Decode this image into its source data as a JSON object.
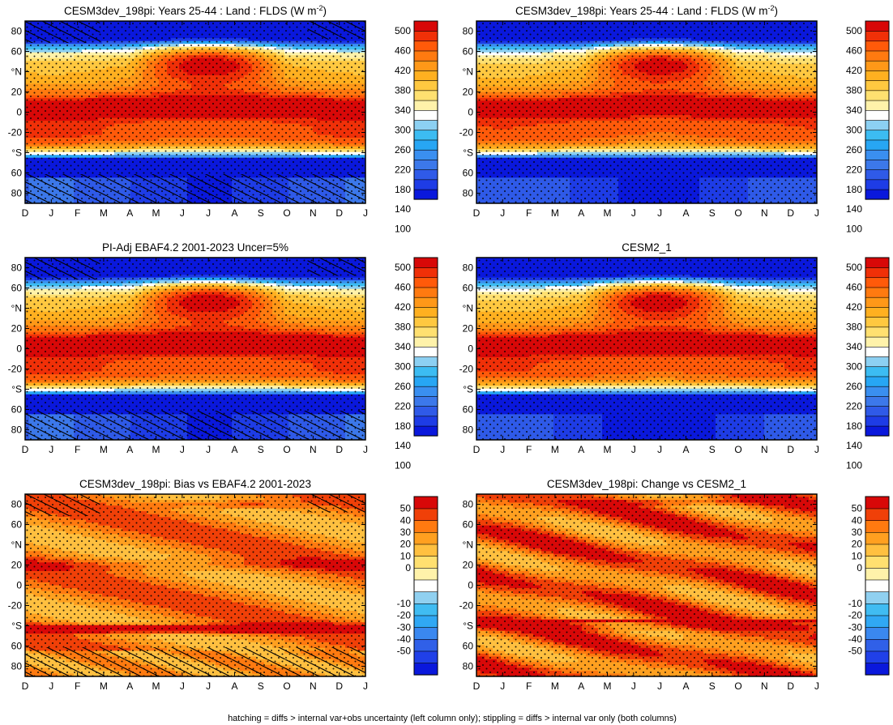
{
  "colors": {
    "absolute": [
      "#0a18dc",
      "#1e3ce6",
      "#2f5ae8",
      "#3c78ea",
      "#3a8ff0",
      "#27a6f4",
      "#3cbcf2",
      "#8cd0f2",
      "#ffffff",
      "#fff2aa",
      "#ffe070",
      "#ffc840",
      "#ffb020",
      "#ff9818",
      "#ff7a10",
      "#ff5a0a",
      "#f03008",
      "#d80808"
    ],
    "difference": [
      "#0a18dc",
      "#2040e8",
      "#3060e8",
      "#3a88f0",
      "#30a8f4",
      "#40bcf2",
      "#90d0f0",
      "#ffffff",
      "#fff2aa",
      "#ffe070",
      "#ffc040",
      "#ffa020",
      "#ff7a10",
      "#f04008",
      "#d80808"
    ]
  },
  "footnote": "hatching = diffs > internal var+obs uncertainty (left column only); stippling = diffs > internal var only (both columns)",
  "chart_data": [
    {
      "type": "heatmap",
      "id": "p1",
      "title": "CESM3dev_198pi: Years 25-44 : Land : FLDS (W m",
      "title_sup": "-2",
      "title_end": ")",
      "xlabel": "",
      "ylabel": "",
      "x_ticks": [
        "D",
        "J",
        "F",
        "M",
        "A",
        "M",
        "J",
        "J",
        "A",
        "S",
        "O",
        "N",
        "D",
        "J"
      ],
      "y_ticks": [
        "80",
        "60",
        "°N",
        "20",
        "0",
        "-20",
        "°S",
        "60",
        "80"
      ],
      "ylim": [
        -90,
        90
      ],
      "kind": "abs",
      "hatch": true,
      "colorbar": {
        "labels": [
          "500",
          "460",
          "420",
          "380",
          "340",
          "300",
          "260",
          "220",
          "180",
          "140",
          "100"
        ]
      }
    },
    {
      "type": "heatmap",
      "id": "p2",
      "title": "CESM3dev_198pi: Years 25-44 : Land : FLDS (W m",
      "title_sup": "-2",
      "title_end": ")",
      "xlabel": "",
      "ylabel": "",
      "x_ticks": [
        "D",
        "J",
        "F",
        "M",
        "A",
        "M",
        "J",
        "J",
        "A",
        "S",
        "O",
        "N",
        "D",
        "J"
      ],
      "y_ticks": [
        "80",
        "60",
        "°N",
        "20",
        "0",
        "-20",
        "°S",
        "60",
        "80"
      ],
      "ylim": [
        -90,
        90
      ],
      "kind": "abs",
      "hatch": false,
      "colorbar": {
        "labels": [
          "500",
          "460",
          "420",
          "380",
          "340",
          "300",
          "260",
          "220",
          "180",
          "140",
          "100"
        ]
      }
    },
    {
      "type": "heatmap",
      "id": "p3",
      "title": "PI-Adj EBAF4.2 2001-2023 Uncer=5%",
      "title_sup": "",
      "title_end": "",
      "xlabel": "",
      "ylabel": "",
      "x_ticks": [
        "D",
        "J",
        "F",
        "M",
        "A",
        "M",
        "J",
        "J",
        "A",
        "S",
        "O",
        "N",
        "D",
        "J"
      ],
      "y_ticks": [
        "80",
        "60",
        "°N",
        "20",
        "0",
        "-20",
        "°S",
        "60",
        "80"
      ],
      "ylim": [
        -90,
        90
      ],
      "kind": "abs",
      "hatch": true,
      "colorbar": {
        "labels": [
          "500",
          "460",
          "420",
          "380",
          "340",
          "300",
          "260",
          "220",
          "180",
          "140",
          "100"
        ]
      }
    },
    {
      "type": "heatmap",
      "id": "p4",
      "title": "CESM2_1",
      "title_sup": "",
      "title_end": "",
      "xlabel": "",
      "ylabel": "",
      "x_ticks": [
        "D",
        "J",
        "F",
        "M",
        "A",
        "M",
        "J",
        "J",
        "A",
        "S",
        "O",
        "N",
        "D",
        "J"
      ],
      "y_ticks": [
        "80",
        "60",
        "°N",
        "20",
        "0",
        "-20",
        "°S",
        "60",
        "80"
      ],
      "ylim": [
        -90,
        90
      ],
      "kind": "abs",
      "hatch": false,
      "colorbar": {
        "labels": [
          "500",
          "460",
          "420",
          "380",
          "340",
          "300",
          "260",
          "220",
          "180",
          "140",
          "100"
        ]
      }
    },
    {
      "type": "heatmap",
      "id": "p5",
      "title": "CESM3dev_198pi: Bias vs EBAF4.2 2001-2023",
      "title_sup": "",
      "title_end": "",
      "xlabel": "",
      "ylabel": "",
      "x_ticks": [
        "D",
        "J",
        "F",
        "M",
        "A",
        "M",
        "J",
        "J",
        "A",
        "S",
        "O",
        "N",
        "D",
        "J"
      ],
      "y_ticks": [
        "80",
        "60",
        "°N",
        "20",
        "0",
        "-20",
        "°S",
        "60",
        "80"
      ],
      "ylim": [
        -90,
        90
      ],
      "kind": "bias",
      "hatch": true,
      "colorbar": {
        "labels": [
          "50",
          "40",
          "30",
          "20",
          "10",
          "0",
          "-10",
          "-20",
          "-30",
          "-40",
          "-50"
        ]
      }
    },
    {
      "type": "heatmap",
      "id": "p6",
      "title": "CESM3dev_198pi: Change vs CESM2_1",
      "title_sup": "",
      "title_end": "",
      "xlabel": "",
      "ylabel": "",
      "x_ticks": [
        "D",
        "J",
        "F",
        "M",
        "A",
        "M",
        "J",
        "J",
        "A",
        "S",
        "O",
        "N",
        "D",
        "J"
      ],
      "y_ticks": [
        "80",
        "60",
        "°N",
        "20",
        "0",
        "-20",
        "°S",
        "60",
        "80"
      ],
      "ylim": [
        -90,
        90
      ],
      "kind": "change",
      "hatch": false,
      "colorbar": {
        "labels": [
          "50",
          "40",
          "30",
          "20",
          "10",
          "0",
          "-10",
          "-20",
          "-30",
          "-40",
          "-50"
        ]
      }
    }
  ]
}
